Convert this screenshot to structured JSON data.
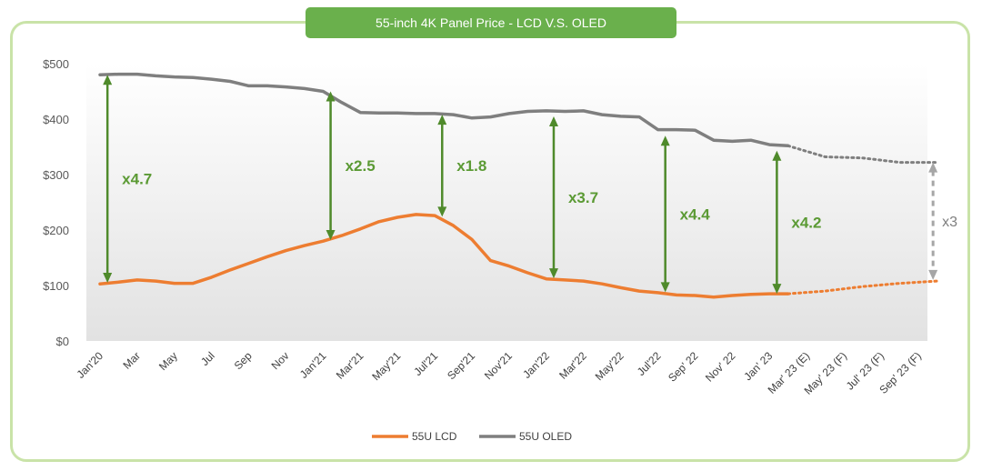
{
  "chart_data": {
    "type": "line",
    "title": "55-inch 4K Panel Price - LCD V.S. OLED",
    "xlabel": "",
    "ylabel": "",
    "ylim": [
      0,
      500
    ],
    "y_ticks": [
      "$0",
      "$100",
      "$200",
      "$300",
      "$400",
      "$500"
    ],
    "categories": [
      "Jan'20",
      "Mar",
      "May",
      "Jul",
      "Sep",
      "Nov",
      "Jan'21",
      "Mar'21",
      "May'21",
      "Jul'21",
      "Sep'21",
      "Nov'21",
      "Jan'22",
      "Mar'22",
      "May'22",
      "Jul'22",
      "Sep' 22",
      "Nov' 22",
      "Jan' 23",
      "Mar' 23 (E)",
      "May' 23 (F)",
      "Jul' 23 (F)",
      "Sep' 23 (F)"
    ],
    "series": [
      {
        "name": "55U LCD",
        "color": "#ed7d31",
        "actual": [
          [
            0,
            103
          ],
          [
            0.5,
            106
          ],
          [
            1,
            110
          ],
          [
            1.5,
            108
          ],
          [
            2,
            104
          ],
          [
            2.5,
            104
          ],
          [
            3,
            115
          ],
          [
            3.5,
            128
          ],
          [
            4,
            140
          ],
          [
            4.5,
            152
          ],
          [
            5,
            163
          ],
          [
            5.5,
            172
          ],
          [
            6,
            180
          ],
          [
            6.5,
            190
          ],
          [
            7,
            202
          ],
          [
            7.5,
            215
          ],
          [
            8,
            223
          ],
          [
            8.5,
            228
          ],
          [
            9,
            226
          ],
          [
            9.5,
            208
          ],
          [
            10,
            183
          ],
          [
            10.5,
            145
          ],
          [
            11,
            135
          ],
          [
            11.5,
            123
          ],
          [
            12,
            112
          ],
          [
            12.5,
            110
          ],
          [
            13,
            108
          ],
          [
            13.5,
            103
          ],
          [
            14,
            96
          ],
          [
            14.5,
            90
          ],
          [
            15,
            87
          ],
          [
            15.5,
            83
          ],
          [
            16,
            82
          ],
          [
            16.5,
            79
          ],
          [
            17,
            82
          ],
          [
            17.5,
            84
          ],
          [
            18,
            85
          ],
          [
            18.5,
            85
          ]
        ],
        "forecast": [
          [
            18.5,
            85
          ],
          [
            19.5,
            90
          ],
          [
            20.5,
            98
          ],
          [
            21.5,
            104
          ],
          [
            22.5,
            108
          ]
        ]
      },
      {
        "name": "55U OLED",
        "color": "#7f7f7f",
        "actual": [
          [
            0,
            480
          ],
          [
            0.5,
            481
          ],
          [
            1,
            481
          ],
          [
            1.5,
            478
          ],
          [
            2,
            476
          ],
          [
            2.5,
            475
          ],
          [
            3,
            472
          ],
          [
            3.5,
            468
          ],
          [
            4,
            460
          ],
          [
            4.5,
            460
          ],
          [
            5,
            458
          ],
          [
            5.5,
            455
          ],
          [
            6,
            450
          ],
          [
            6.5,
            430
          ],
          [
            7,
            412
          ],
          [
            7.5,
            411
          ],
          [
            8,
            411
          ],
          [
            8.5,
            410
          ],
          [
            9,
            410
          ],
          [
            9.5,
            408
          ],
          [
            10,
            402
          ],
          [
            10.5,
            404
          ],
          [
            11,
            410
          ],
          [
            11.5,
            414
          ],
          [
            12,
            415
          ],
          [
            12.5,
            414
          ],
          [
            13,
            415
          ],
          [
            13.5,
            408
          ],
          [
            14,
            405
          ],
          [
            14.5,
            404
          ],
          [
            15,
            381
          ],
          [
            15.5,
            381
          ],
          [
            16,
            380
          ],
          [
            16.5,
            362
          ],
          [
            17,
            360
          ],
          [
            17.5,
            362
          ],
          [
            18,
            354
          ],
          [
            18.5,
            352
          ]
        ],
        "forecast": [
          [
            18.5,
            352
          ],
          [
            19.5,
            332
          ],
          [
            20.5,
            330
          ],
          [
            21.5,
            322
          ],
          [
            22.5,
            322
          ]
        ]
      }
    ],
    "annotations": [
      {
        "label": "x4.7",
        "x": 0.2,
        "from": 105,
        "to": 480
      },
      {
        "label": "x2.5",
        "x": 6.2,
        "from": 182,
        "to": 450
      },
      {
        "label": "x1.8",
        "x": 9.2,
        "from": 224,
        "to": 408
      },
      {
        "label": "x3.7",
        "x": 12.2,
        "from": 113,
        "to": 405
      },
      {
        "label": "x4.4",
        "x": 15.2,
        "from": 88,
        "to": 370
      },
      {
        "label": "x4.2",
        "x": 18.2,
        "from": 85,
        "to": 343
      }
    ],
    "forecast_annotation": {
      "label": "x3",
      "x": 22.4,
      "from": 110,
      "to": 322
    },
    "legend": [
      {
        "label": "55U LCD",
        "color": "#ed7d31"
      },
      {
        "label": "55U OLED",
        "color": "#7f7f7f"
      }
    ],
    "legend_position": "bottom",
    "grid": false
  }
}
